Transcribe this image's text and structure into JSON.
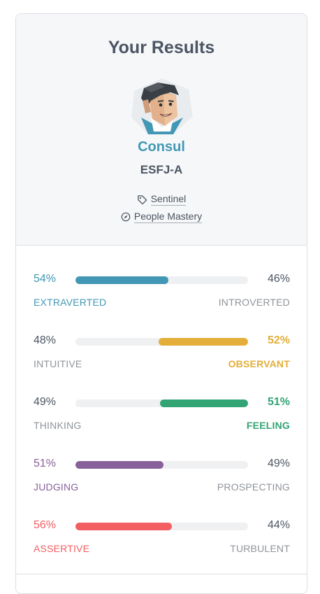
{
  "title": "Your Results",
  "persona": {
    "name": "Consul",
    "code": "ESFJ-A",
    "role": "Sentinel",
    "strategy": "People Mastery",
    "role_icon": "tag-icon",
    "strategy_icon": "compass-icon"
  },
  "traits": [
    {
      "left_pct": "54%",
      "right_pct": "46%",
      "left_label": "EXTRAVERTED",
      "right_label": "INTROVERTED",
      "dominant": "left",
      "value": 0.54,
      "color": "#4298b4"
    },
    {
      "left_pct": "48%",
      "right_pct": "52%",
      "left_label": "INTUITIVE",
      "right_label": "OBSERVANT",
      "dominant": "right",
      "value": 0.52,
      "color": "#e4ae3a"
    },
    {
      "left_pct": "49%",
      "right_pct": "51%",
      "left_label": "THINKING",
      "right_label": "FEELING",
      "dominant": "right",
      "value": 0.51,
      "color": "#33a474"
    },
    {
      "left_pct": "51%",
      "right_pct": "49%",
      "left_label": "JUDGING",
      "right_label": "PROSPECTING",
      "dominant": "left",
      "value": 0.51,
      "color": "#88619a"
    },
    {
      "left_pct": "56%",
      "right_pct": "44%",
      "left_label": "ASSERTIVE",
      "right_label": "TURBULENT",
      "dominant": "left",
      "value": 0.56,
      "color": "#f25e62"
    }
  ]
}
